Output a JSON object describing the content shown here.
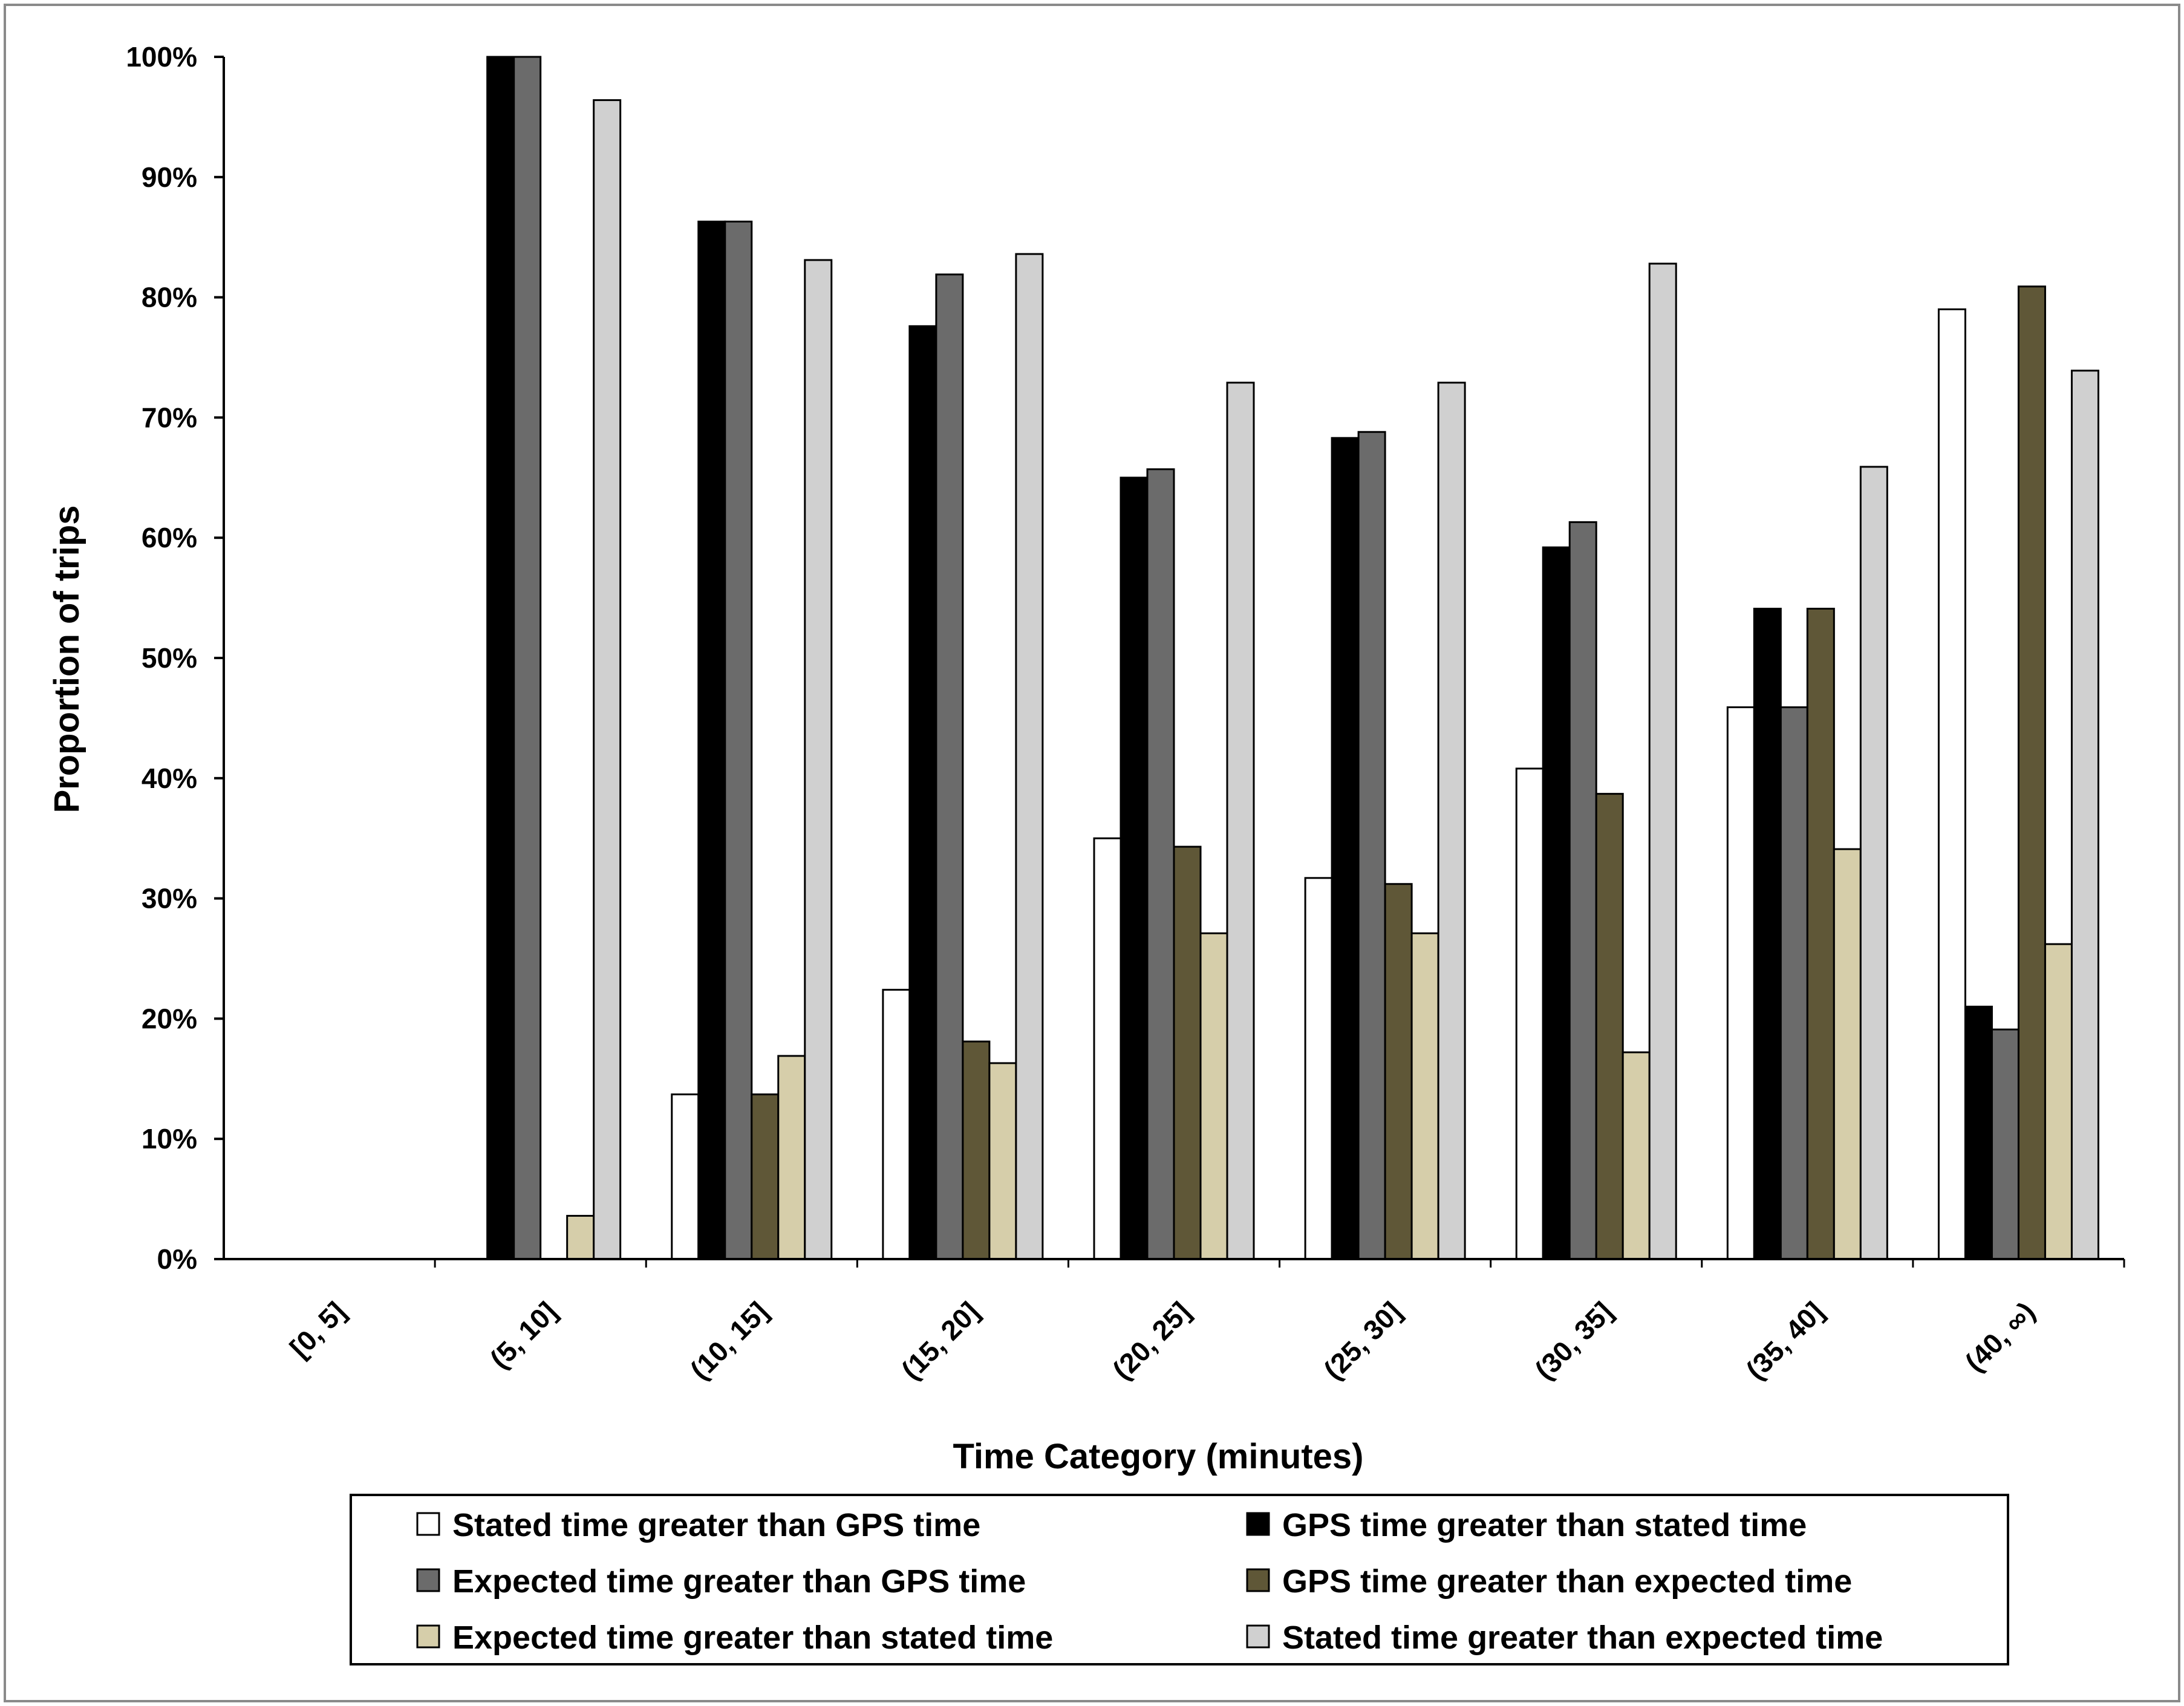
{
  "chart_data": {
    "type": "bar",
    "title": "",
    "xlabel": "Time Category (minutes)",
    "ylabel": "Proportion of trips",
    "ylim": [
      0,
      100
    ],
    "y_ticks": [
      "0%",
      "10%",
      "20%",
      "30%",
      "40%",
      "50%",
      "60%",
      "70%",
      "80%",
      "90%",
      "100%"
    ],
    "grid": false,
    "legend_position": "bottom",
    "categories": [
      "[0, 5]",
      "(5, 10]",
      "(10, 15]",
      "(15, 20]",
      "(20, 25]",
      "(25, 30]",
      "(30, 35]",
      "(35, 40]",
      "(40, ∞)"
    ],
    "series": [
      {
        "name": "Stated time greater than GPS time",
        "color": "#ffffff",
        "values": [
          0,
          0,
          13.7,
          22.4,
          35.0,
          31.7,
          40.8,
          45.9,
          79.0
        ]
      },
      {
        "name": "GPS time greater than stated time",
        "color": "#000000",
        "values": [
          0,
          100,
          86.3,
          77.6,
          65.0,
          68.3,
          59.2,
          54.1,
          21.0
        ]
      },
      {
        "name": "Expected time greater than GPS time",
        "color": "#6b6b6b",
        "values": [
          0,
          100,
          86.3,
          81.9,
          65.7,
          68.8,
          61.3,
          45.9,
          19.1
        ]
      },
      {
        "name": "GPS time greater than expected time",
        "color": "#5f5737",
        "values": [
          0,
          0,
          13.7,
          18.1,
          34.3,
          31.2,
          38.7,
          54.1,
          80.9
        ]
      },
      {
        "name": "Expected time greater than stated time",
        "color": "#d6ceaa",
        "values": [
          0,
          3.6,
          16.9,
          16.3,
          27.1,
          27.1,
          17.2,
          34.1,
          26.2
        ]
      },
      {
        "name": "Stated time greater than expected time",
        "color": "#d0d0d0",
        "values": [
          0,
          96.4,
          83.1,
          83.6,
          72.9,
          72.9,
          82.8,
          65.9,
          73.9
        ]
      }
    ]
  }
}
